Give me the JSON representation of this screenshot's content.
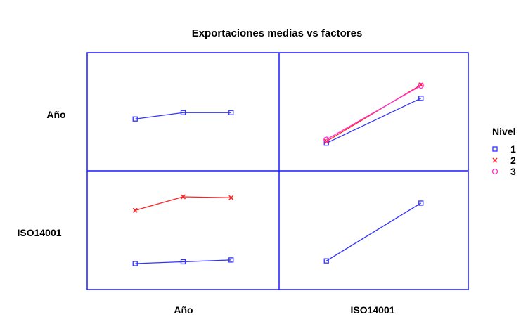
{
  "chart_data": {
    "type": "line",
    "title": "Exportaciones  medias vs factores",
    "row_labels": [
      "Año",
      "ISO14001"
    ],
    "col_labels": [
      "Año",
      "ISO14001"
    ],
    "legend": {
      "title": "Nivel",
      "position": "right",
      "items": [
        {
          "label": "1",
          "color": "#3333ff",
          "marker": "square"
        },
        {
          "label": "2",
          "color": "#ff2222",
          "marker": "x"
        },
        {
          "label": "3",
          "color": "#ff33cc",
          "marker": "circle"
        }
      ]
    },
    "grid": false,
    "ylim": [
      0,
      1
    ],
    "panels": [
      {
        "row": 0,
        "col": 0,
        "x": [
          1,
          2,
          3
        ],
        "series": [
          {
            "name": "1",
            "values": [
              0.42,
              0.49,
              0.49
            ]
          }
        ]
      },
      {
        "row": 0,
        "col": 1,
        "x": [
          1,
          2
        ],
        "series": [
          {
            "name": "1",
            "values": [
              0.15,
              0.65
            ]
          },
          {
            "name": "2",
            "values": [
              0.17,
              0.8
            ]
          },
          {
            "name": "3",
            "values": [
              0.19,
              0.79
            ]
          }
        ]
      },
      {
        "row": 1,
        "col": 0,
        "x": [
          1,
          2,
          3
        ],
        "series": [
          {
            "name": "2",
            "values": [
              0.72,
              0.87,
              0.86
            ]
          },
          {
            "name": "1",
            "values": [
              0.13,
              0.15,
              0.17
            ]
          }
        ]
      },
      {
        "row": 1,
        "col": 1,
        "x": [
          1,
          2
        ],
        "series": [
          {
            "name": "1",
            "values": [
              0.16,
              0.8
            ]
          }
        ]
      }
    ]
  }
}
